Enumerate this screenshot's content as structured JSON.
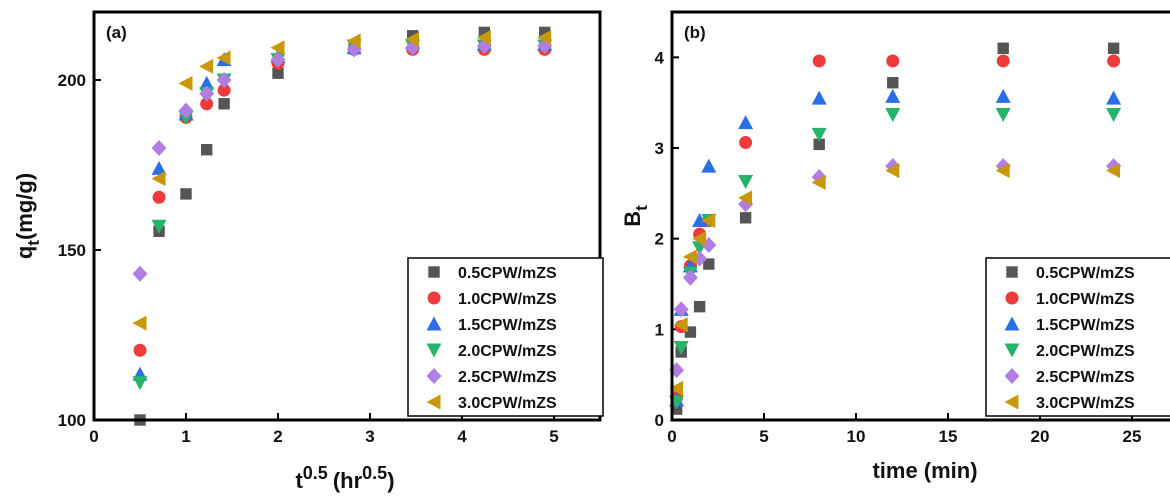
{
  "colors": {
    "0.5CPW/mZS": "#555555",
    "1.0CPW/mZS": "#ef3b3b",
    "1.5CPW/mZS": "#2b6fe6",
    "2.0CPW/mZS": "#27b36a",
    "2.5CPW/mZS": "#b07ee0",
    "3.0CPW/mZS": "#c9980a"
  },
  "markers": {
    "0.5CPW/mZS": "square",
    "1.0CPW/mZS": "circle",
    "1.5CPW/mZS": "triangle-up",
    "2.0CPW/mZS": "triangle-down",
    "2.5CPW/mZS": "diamond",
    "3.0CPW/mZS": "triangle-left"
  },
  "chart_data": [
    {
      "panel": "(a)",
      "type": "scatter",
      "xlabel": {
        "base": "t",
        "sup": "0.5",
        "unit_base": "(hr",
        "unit_sup": "0.5",
        "unit_close": ")"
      },
      "ylabel": {
        "base": "q",
        "sub": "t",
        "rest": "(mg/g)"
      },
      "xlim": [
        0,
        5.5
      ],
      "ylim": [
        100,
        220
      ],
      "xticks": [
        0,
        1,
        2,
        3,
        4,
        5
      ],
      "yticks": [
        100,
        150,
        200
      ],
      "legend": "bottom-right",
      "grid": false,
      "x": [
        0.5,
        0.707,
        1.0,
        1.225,
        1.414,
        2.0,
        2.828,
        3.464,
        4.243,
        4.899
      ],
      "series": [
        {
          "name": "0.5CPW/mZS",
          "y": [
            100,
            155.5,
            166.5,
            179.5,
            193,
            202,
            209.5,
            213,
            214,
            214
          ]
        },
        {
          "name": "1.0CPW/mZS",
          "y": [
            120.5,
            165.5,
            189,
            193,
            197,
            205,
            209,
            209,
            209,
            209
          ]
        },
        {
          "name": "1.5CPW/mZS",
          "y": [
            113.5,
            174,
            190,
            199,
            206,
            207,
            209.5,
            211,
            210.5,
            210.5
          ]
        },
        {
          "name": "2.0CPW/mZS",
          "y": [
            111,
            157,
            189,
            196,
            200,
            206,
            210,
            210,
            210,
            210
          ]
        },
        {
          "name": "2.5CPW/mZS",
          "y": [
            143,
            180,
            191,
            196,
            200,
            206,
            209,
            209.5,
            210,
            210
          ]
        },
        {
          "name": "3.0CPW/mZS",
          "y": [
            128.5,
            171,
            199,
            204,
            206.5,
            209.5,
            211.5,
            212,
            212.5,
            212.5
          ]
        }
      ]
    },
    {
      "panel": "(b)",
      "type": "scatter",
      "xlabel": {
        "base": "time (min)"
      },
      "ylabel": {
        "base": "B",
        "sub": "t"
      },
      "xlim": [
        0,
        27.5
      ],
      "ylim": [
        0,
        4.5
      ],
      "xticks": [
        0,
        5,
        10,
        15,
        20,
        25
      ],
      "yticks": [
        0,
        1,
        2,
        3,
        4
      ],
      "legend": "bottom-right",
      "grid": false,
      "x": [
        0.25,
        0.5,
        1.0,
        1.5,
        2.0,
        4.0,
        8.0,
        12.0,
        18.0,
        24.0
      ],
      "series": [
        {
          "name": "0.5CPW/mZS",
          "y": [
            0.12,
            0.75,
            0.97,
            1.25,
            1.72,
            2.23,
            3.04,
            3.72,
            4.1,
            4.1
          ]
        },
        {
          "name": "1.0CPW/mZS",
          "y": [
            0.25,
            1.03,
            1.7,
            2.05,
            2.2,
            3.06,
            3.96,
            3.96,
            3.96,
            3.96
          ]
        },
        {
          "name": "1.5CPW/mZS",
          "y": [
            0.22,
            1.22,
            1.7,
            2.2,
            2.8,
            3.28,
            3.55,
            3.57,
            3.57,
            3.55
          ]
        },
        {
          "name": "2.0CPW/mZS",
          "y": [
            0.2,
            0.8,
            1.62,
            1.9,
            2.2,
            2.63,
            3.15,
            3.37,
            3.37,
            3.37
          ]
        },
        {
          "name": "2.5CPW/mZS",
          "y": [
            0.55,
            1.22,
            1.57,
            1.78,
            1.93,
            2.38,
            2.68,
            2.8,
            2.8,
            2.8
          ]
        },
        {
          "name": "3.0CPW/mZS",
          "y": [
            0.35,
            1.05,
            1.8,
            2.0,
            2.2,
            2.45,
            2.62,
            2.75,
            2.75,
            2.75
          ]
        }
      ]
    }
  ]
}
